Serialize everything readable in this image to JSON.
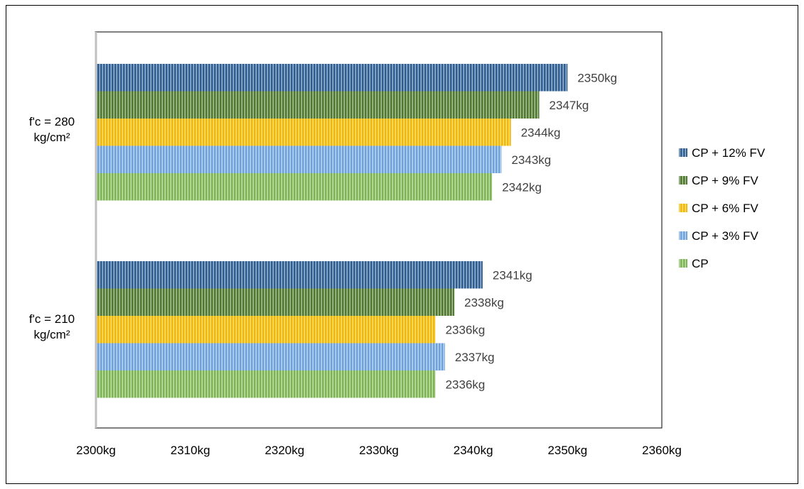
{
  "chart_data": {
    "type": "bar",
    "orientation": "horizontal",
    "title": "",
    "xlabel": "",
    "ylabel": "",
    "xlim": [
      2300,
      2360
    ],
    "x_ticks": [
      2300,
      2310,
      2320,
      2330,
      2340,
      2350,
      2360
    ],
    "tick_suffix": "kg",
    "categories": [
      "f'c = 280 kg/cm²",
      "f'c = 210 kg/cm²"
    ],
    "category_lines": [
      [
        "f'c = 280",
        "kg/cm²"
      ],
      [
        "f'c = 210",
        "kg/cm²"
      ]
    ],
    "series": [
      {
        "name": "CP + 12% FV",
        "color": "#2E5F93",
        "values": [
          2350,
          2341
        ],
        "labels": [
          "2350kg",
          "2341kg"
        ]
      },
      {
        "name": "CP + 9% FV",
        "color": "#4F7A2F",
        "values": [
          2347,
          2338
        ],
        "labels": [
          "2347kg",
          "2338kg"
        ]
      },
      {
        "name": "CP + 6% FV",
        "color": "#F5B800",
        "values": [
          2344,
          2336
        ],
        "labels": [
          "2344kg",
          "2336kg"
        ]
      },
      {
        "name": "CP + 3% FV",
        "color": "#6FA3DE",
        "values": [
          2343,
          2337
        ],
        "labels": [
          "2343kg",
          "2337kg"
        ]
      },
      {
        "name": "CP",
        "color": "#7DB552",
        "values": [
          2342,
          2336
        ],
        "labels": [
          "2342kg",
          "2336kg"
        ]
      }
    ],
    "legend_position": "right",
    "grid": false
  }
}
